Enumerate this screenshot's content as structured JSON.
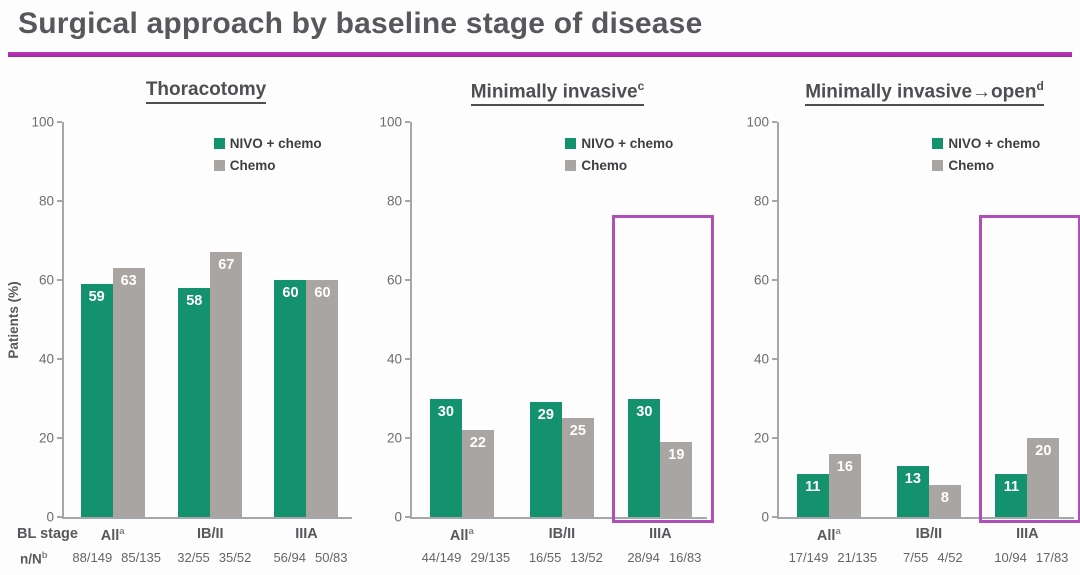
{
  "title": "Surgical approach by baseline stage of disease",
  "colors": {
    "nivo_green": "#13926D",
    "chemo_gray": "#A8A5A3",
    "accent_magenta": "#C433C4",
    "highlight_box": "#B14FB8",
    "title_gray": "#57585B"
  },
  "ylabel": "Patients (%)",
  "row_labels": {
    "bl_stage": "BL stage",
    "nn": "n/N",
    "nn_sup": "b"
  },
  "legend": {
    "items": [
      "NIVO + chemo",
      "Chemo"
    ],
    "position": "top-right"
  },
  "chart_data": [
    {
      "type": "bar",
      "title": "Thoracotomy",
      "title_sup": "",
      "categories": [
        "All",
        "IB/II",
        "IIIA"
      ],
      "category_sups": [
        "a",
        "",
        ""
      ],
      "ylim": [
        0,
        100
      ],
      "yticks": [
        0,
        20,
        40,
        60,
        80,
        100
      ],
      "grid": false,
      "series": [
        {
          "name": "NIVO + chemo",
          "color": "#13926D",
          "values": [
            59,
            58,
            60
          ]
        },
        {
          "name": "Chemo",
          "color": "#A8A5A3",
          "values": [
            63,
            67,
            60
          ]
        }
      ],
      "n_over_N": [
        [
          "88/149",
          "85/135"
        ],
        [
          "32/55",
          "35/52"
        ],
        [
          "56/94",
          "50/83"
        ]
      ],
      "highlight": null
    },
    {
      "type": "bar",
      "title": "Minimally invasive",
      "title_sup": "c",
      "categories": [
        "All",
        "IB/II",
        "IIIA"
      ],
      "category_sups": [
        "a",
        "",
        ""
      ],
      "ylim": [
        0,
        100
      ],
      "yticks": [
        0,
        20,
        40,
        60,
        80,
        100
      ],
      "grid": false,
      "series": [
        {
          "name": "NIVO + chemo",
          "color": "#13926D",
          "values": [
            30,
            29,
            30
          ]
        },
        {
          "name": "Chemo",
          "color": "#A8A5A3",
          "values": [
            22,
            25,
            19
          ]
        }
      ],
      "n_over_N": [
        [
          "44/149",
          "29/135"
        ],
        [
          "16/55",
          "13/52"
        ],
        [
          "28/94",
          "16/83"
        ]
      ],
      "highlight": {
        "category": "IIIA",
        "category_index": 2,
        "top_value": 76
      }
    },
    {
      "type": "bar",
      "title": "Minimally invasive→open",
      "title_sup": "d",
      "categories": [
        "All",
        "IB/II",
        "IIIA"
      ],
      "category_sups": [
        "a",
        "",
        ""
      ],
      "ylim": [
        0,
        100
      ],
      "yticks": [
        0,
        20,
        40,
        60,
        80,
        100
      ],
      "grid": false,
      "series": [
        {
          "name": "NIVO + chemo",
          "color": "#13926D",
          "values": [
            11,
            13,
            11
          ]
        },
        {
          "name": "Chemo",
          "color": "#A8A5A3",
          "values": [
            16,
            8,
            20
          ]
        }
      ],
      "n_over_N": [
        [
          "17/149",
          "21/135"
        ],
        [
          "7/55",
          "4/52"
        ],
        [
          "10/94",
          "17/83"
        ]
      ],
      "highlight": {
        "category": "IIIA",
        "category_index": 2,
        "top_value": 76
      }
    }
  ]
}
